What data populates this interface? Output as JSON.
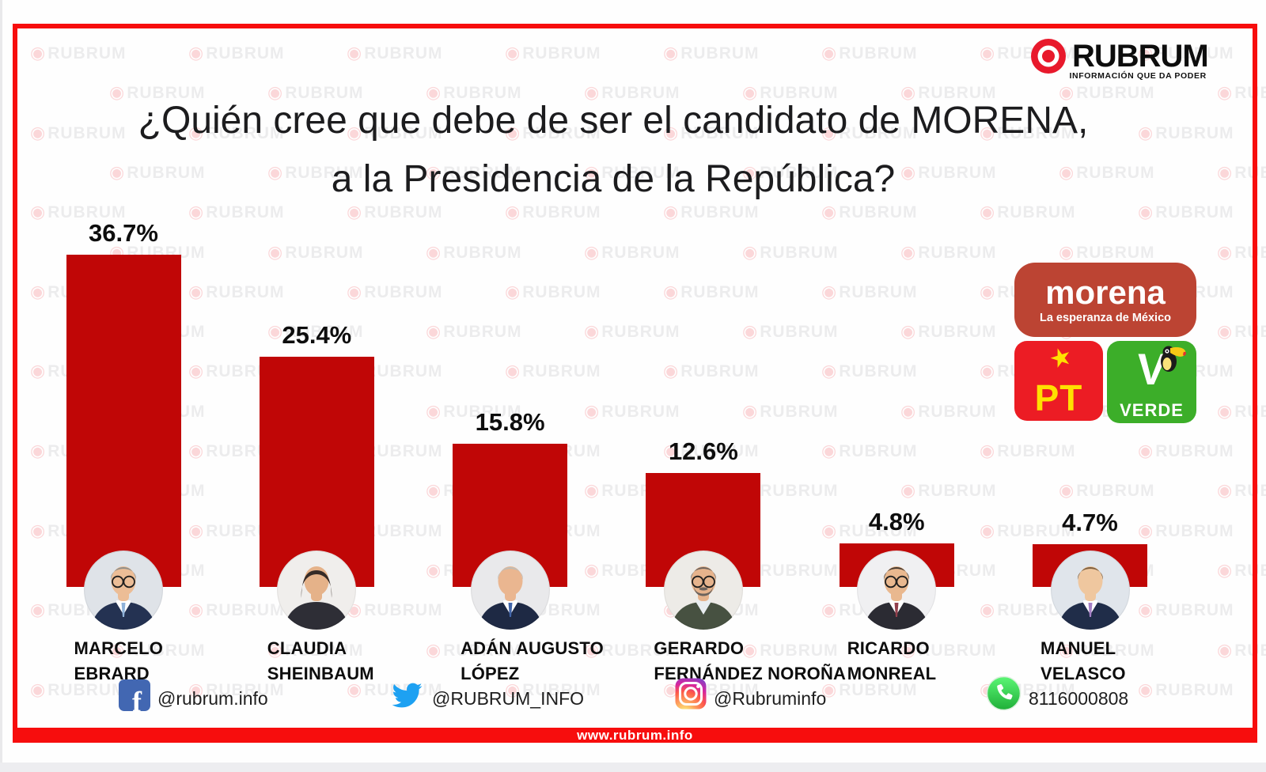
{
  "watermark": {
    "icon": "target-icon",
    "text": "RUBRUM"
  },
  "brand": {
    "name": "RUBRUM",
    "tagline": "INFORMACIÓN QUE DA PODER",
    "logo_color": "#E8192C"
  },
  "title": {
    "line1": "¿Quién cree que debe de ser el candidato de MORENA,",
    "line2": "a la Presidencia de la República?"
  },
  "chart_data": {
    "type": "bar",
    "title": "¿Quién cree que debe de ser el candidato de MORENA, a la Presidencia de la República?",
    "categories": [
      "MARCELO EBRARD",
      "CLAUDIA SHEINBAUM",
      "ADÁN AUGUSTO LÓPEZ",
      "GERARDO FERNÁNDEZ NOROÑA",
      "RICARDO MONREAL",
      "MANUEL VELASCO"
    ],
    "values": [
      36.7,
      25.4,
      15.8,
      12.6,
      4.8,
      4.7
    ],
    "value_labels": [
      "36.7%",
      "25.4%",
      "15.8%",
      "12.6%",
      "4.8%",
      "4.7%"
    ],
    "bar_color": "#C00606",
    "xlabel": "",
    "ylabel": "",
    "ylim": [
      0,
      40
    ],
    "grid": false,
    "legend_position": "none"
  },
  "candidates": [
    {
      "value": 36.7,
      "pct_label": "36.7%",
      "name_lines": [
        "MARCELO",
        "EBRARD"
      ],
      "avatar": {
        "bg": "#dfe3e8",
        "skin": "#ecbd96",
        "hair": "#8f8f8b",
        "suit": "#243252",
        "shirt": "#ffffff",
        "tie": "#8fb2d9",
        "glasses": true,
        "beard": false,
        "female": false
      }
    },
    {
      "value": 25.4,
      "pct_label": "25.4%",
      "name_lines": [
        "CLAUDIA",
        "SHEINBAUM"
      ],
      "avatar": {
        "bg": "#f0eeec",
        "skin": "#e5b289",
        "hair": "#352b27",
        "suit": "#2e2e36",
        "shirt": "",
        "tie": "",
        "glasses": false,
        "beard": false,
        "female": true
      }
    },
    {
      "value": 15.8,
      "pct_label": "15.8%",
      "name_lines": [
        "ADÁN AUGUSTO",
        "LÓPEZ"
      ],
      "avatar": {
        "bg": "#e9e9eb",
        "skin": "#eab690",
        "hair": "#bdbdb9",
        "suit": "#1e2944",
        "shirt": "#ffffff",
        "tie": "#4165aa",
        "glasses": false,
        "beard": false,
        "female": false
      }
    },
    {
      "value": 12.6,
      "pct_label": "12.6%",
      "name_lines": [
        "GERARDO",
        "FERNÁNDEZ NOROÑA"
      ],
      "avatar": {
        "bg": "#edebe7",
        "skin": "#e6b38c",
        "hair": "#6d645e",
        "suit": "#475141",
        "shirt": "#e8edf0",
        "tie": "",
        "glasses": true,
        "beard": true,
        "female": false
      }
    },
    {
      "value": 4.8,
      "pct_label": "4.8%",
      "name_lines": [
        "RICARDO",
        "MONREAL"
      ],
      "avatar": {
        "bg": "#f0f0f2",
        "skin": "#e9b88f",
        "hair": "#473c33",
        "suit": "#2b2b33",
        "shirt": "#ffffff",
        "tie": "#93404d",
        "glasses": true,
        "beard": false,
        "female": false
      }
    },
    {
      "value": 4.7,
      "pct_label": "4.7%",
      "name_lines": [
        "MANUEL",
        "VELASCO"
      ],
      "avatar": {
        "bg": "#e0e5eb",
        "skin": "#efc79f",
        "hair": "#7e6040",
        "suit": "#202d49",
        "shirt": "#ffffff",
        "tie": "#a57fc5",
        "glasses": false,
        "beard": false,
        "female": false
      }
    }
  ],
  "party_logos": {
    "morena": {
      "name": "morena",
      "tagline": "La esperanza de México",
      "bg": "#BC4433"
    },
    "pt": {
      "name": "PT",
      "star": "★",
      "bg": "#EC1C24",
      "accent": "#FFE000"
    },
    "verde": {
      "name": "VERDE",
      "v_mark": "V",
      "bg": "#3CAE29"
    }
  },
  "footer": {
    "items": [
      {
        "network": "facebook",
        "handle": "@rubrum.info",
        "icon_glyph": "f",
        "color": "#4267B2"
      },
      {
        "network": "twitter",
        "handle": "@RUBRUM_INFO",
        "color": "#1DA1F2"
      },
      {
        "network": "instagram",
        "handle": "@Rubruminfo"
      },
      {
        "network": "whatsapp",
        "handle": "8116000808",
        "color": "#25D366"
      }
    ]
  },
  "url_bar": {
    "text": "www.rubrum.info",
    "bg": "#F70D0D"
  },
  "colors": {
    "frame_red": "#F70D0D",
    "bar_red": "#C00606"
  }
}
